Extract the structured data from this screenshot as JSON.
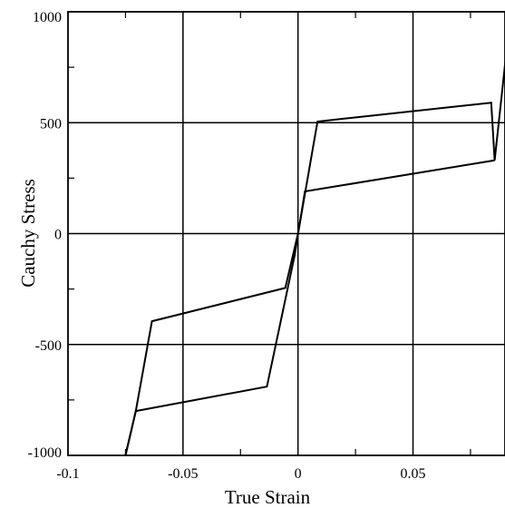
{
  "chart_data": {
    "type": "line",
    "title": "",
    "xlabel": "True Strain",
    "ylabel": "Cauchy Stress",
    "xlim": [
      -0.1,
      0.09
    ],
    "ylim": [
      -1000,
      1000
    ],
    "x_ticks": [
      -0.1,
      -0.05,
      0,
      0.05
    ],
    "x_tick_labels": [
      "-0.1",
      "-0.05",
      "0",
      "0.05"
    ],
    "y_ticks": [
      -1000,
      -500,
      0,
      500,
      1000
    ],
    "y_tick_labels": [
      "-1000",
      "-500",
      "0",
      "500",
      "1000"
    ],
    "grid": true,
    "legend": "none",
    "series": [
      {
        "x": [
          -0.075,
          -0.0705,
          -0.0635,
          -0.0055,
          0,
          0.0085,
          0.084,
          0.0855,
          0.0925
        ],
        "y": [
          -1000,
          -800,
          -395,
          -245,
          0,
          505,
          590,
          330,
          1000
        ]
      },
      {
        "x": [
          -0.075,
          -0.0705,
          -0.0135,
          -0.0015,
          0.003,
          0.0825,
          0.0855
        ],
        "y": [
          -1000,
          -800,
          -690,
          -100,
          190,
          325,
          330
        ]
      }
    ]
  }
}
